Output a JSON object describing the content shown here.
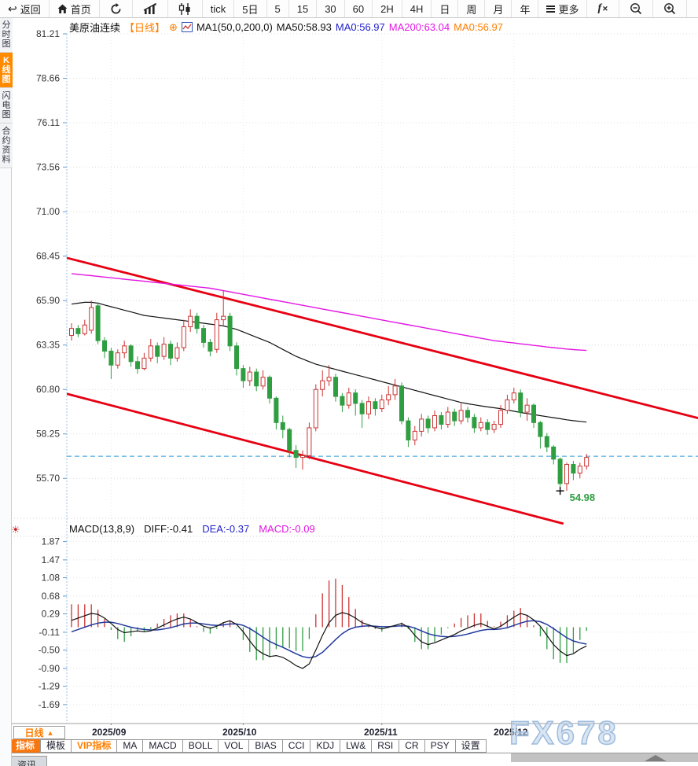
{
  "toolbar": {
    "back_label": "返回",
    "home_label": "首页",
    "buttons": [
      "tick",
      "5日",
      "5",
      "15",
      "30",
      "60",
      "2H",
      "4H",
      "日",
      "周",
      "月",
      "年"
    ],
    "more_label": "更多"
  },
  "sidebar": {
    "items": [
      {
        "label": "分时图",
        "active": false
      },
      {
        "label": "K线图",
        "active": true
      },
      {
        "label": "闪电图",
        "active": false
      },
      {
        "label": "合约资料",
        "active": false
      }
    ]
  },
  "title": {
    "symbol": "美原油连续",
    "period_tag": "【日线】",
    "ma_settings": "MA1(50,0,200,0)",
    "ma50_text": "MA50:58.93",
    "ma0_blue_text": "MA0:56.97",
    "ma200_text": "MA200:63.04",
    "ma0_orange_text": "MA0:56.97"
  },
  "macd_header": {
    "title": "MACD(13,8,9)",
    "diff_text": "DIFF:-0.41",
    "dea_text": "DEA:-0.37",
    "macd_text": "MACD:-0.09"
  },
  "footer": {
    "period_box_label": "日线",
    "x_labels": [
      "2025/09",
      "2025/10",
      "2025/11",
      "2025/12"
    ],
    "tabs": [
      {
        "label": "指标",
        "style": "active"
      },
      {
        "label": "模板",
        "style": ""
      },
      {
        "label": "VIP指标",
        "style": "vip"
      },
      {
        "label": "MA",
        "style": ""
      },
      {
        "label": "MACD",
        "style": ""
      },
      {
        "label": "BOLL",
        "style": ""
      },
      {
        "label": "VOL",
        "style": ""
      },
      {
        "label": "BIAS",
        "style": ""
      },
      {
        "label": "CCI",
        "style": ""
      },
      {
        "label": "KDJ",
        "style": ""
      },
      {
        "label": "LW&",
        "style": ""
      },
      {
        "label": "RSI",
        "style": ""
      },
      {
        "label": "CR",
        "style": ""
      },
      {
        "label": "PSY",
        "style": ""
      },
      {
        "label": "设置",
        "style": ""
      }
    ],
    "partial_tab_label": "资讯"
  },
  "watermark": "FX678",
  "colors": {
    "accent_orange": "#ff7e00",
    "up_red": "#cc3333",
    "down_green": "#2f9e41",
    "ma50_black": "#111111",
    "ma200_magenta": "#e316e3",
    "dea_blue": "#223a9e",
    "channel_red": "#e60012",
    "price_line_blue": "#2e9bd6",
    "grid_gray": "#dcdcdc"
  },
  "chart_data": {
    "type": "candlestick-with-macd",
    "title": "美原油连续 日线 (WTI Crude Oil Continuous, Daily)",
    "y_axis_main": [
      81.21,
      78.66,
      76.11,
      73.56,
      71.0,
      68.45,
      65.9,
      63.35,
      60.8,
      58.25,
      55.7
    ],
    "y_axis_macd": [
      1.87,
      1.47,
      1.08,
      0.68,
      0.29,
      -0.11,
      -0.5,
      -0.9,
      -1.29,
      -1.69
    ],
    "x_months": [
      {
        "label": "2025/09",
        "i": 6
      },
      {
        "label": "2025/10",
        "i": 26
      },
      {
        "label": "2025/11",
        "i": 47
      },
      {
        "label": "2025/12",
        "i": 67
      }
    ],
    "current_price_line": 56.97,
    "low_marker": {
      "index": 74,
      "value": 54.98,
      "label": "54.98"
    },
    "channel_lines": [
      {
        "i1": -0.7,
        "v1": 68.35,
        "i2": 95.0,
        "v2": 59.15
      },
      {
        "i1": -0.7,
        "v1": 60.55,
        "i2": 74.5,
        "v2": 53.1
      }
    ],
    "candles": [
      [
        63.9,
        64.6,
        63.6,
        64.3
      ],
      [
        64.3,
        64.5,
        63.8,
        64.0
      ],
      [
        64.0,
        64.8,
        63.9,
        64.5
      ],
      [
        64.2,
        65.9,
        64.0,
        65.5
      ],
      [
        65.6,
        65.8,
        63.4,
        63.6
      ],
      [
        63.6,
        63.8,
        62.6,
        63.0
      ],
      [
        63.0,
        63.2,
        61.4,
        62.2
      ],
      [
        62.2,
        63.1,
        62.0,
        62.9
      ],
      [
        62.9,
        63.6,
        62.6,
        63.3
      ],
      [
        63.3,
        63.4,
        62.1,
        62.4
      ],
      [
        62.4,
        62.7,
        61.7,
        62.0
      ],
      [
        62.0,
        62.9,
        61.9,
        62.6
      ],
      [
        62.6,
        63.7,
        62.4,
        63.3
      ],
      [
        63.3,
        63.5,
        62.3,
        62.7
      ],
      [
        62.7,
        63.8,
        62.5,
        63.4
      ],
      [
        63.4,
        63.6,
        62.2,
        62.6
      ],
      [
        62.6,
        63.5,
        62.4,
        63.2
      ],
      [
        63.2,
        64.8,
        63.0,
        64.4
      ],
      [
        64.4,
        65.4,
        64.1,
        65.0
      ],
      [
        65.0,
        65.2,
        64.0,
        64.3
      ],
      [
        64.3,
        64.5,
        63.2,
        63.5
      ],
      [
        63.5,
        63.7,
        62.7,
        63.0
      ],
      [
        63.1,
        65.2,
        62.9,
        64.8
      ],
      [
        64.8,
        66.5,
        64.5,
        65.0
      ],
      [
        65.0,
        65.2,
        63.0,
        63.3
      ],
      [
        63.3,
        63.5,
        61.6,
        62.0
      ],
      [
        62.0,
        62.2,
        60.9,
        61.3
      ],
      [
        61.3,
        62.1,
        61.0,
        61.8
      ],
      [
        61.8,
        62.0,
        60.7,
        61.0
      ],
      [
        61.0,
        61.9,
        60.8,
        61.5
      ],
      [
        61.5,
        61.6,
        60.0,
        60.3
      ],
      [
        60.3,
        60.4,
        58.5,
        58.9
      ],
      [
        58.9,
        59.3,
        58.0,
        58.5
      ],
      [
        58.5,
        58.6,
        56.9,
        57.3
      ],
      [
        57.3,
        57.6,
        56.3,
        56.9
      ],
      [
        56.9,
        57.3,
        56.2,
        57.0
      ],
      [
        57.0,
        58.9,
        56.8,
        58.6
      ],
      [
        58.6,
        61.1,
        58.4,
        60.8
      ],
      [
        60.8,
        61.9,
        60.4,
        61.3
      ],
      [
        61.3,
        62.2,
        61.0,
        61.5
      ],
      [
        61.5,
        61.7,
        60.1,
        60.4
      ],
      [
        60.4,
        60.6,
        59.5,
        59.9
      ],
      [
        59.9,
        60.9,
        59.7,
        60.6
      ],
      [
        60.6,
        60.8,
        59.3,
        60.0
      ],
      [
        60.0,
        60.2,
        58.6,
        59.4
      ],
      [
        59.4,
        60.4,
        59.1,
        60.1
      ],
      [
        60.1,
        60.3,
        59.3,
        59.7
      ],
      [
        59.7,
        60.5,
        59.5,
        60.2
      ],
      [
        60.2,
        61.0,
        59.9,
        60.5
      ],
      [
        60.5,
        61.4,
        60.2,
        61.0
      ],
      [
        61.0,
        61.2,
        58.8,
        59.0
      ],
      [
        59.0,
        59.2,
        57.5,
        57.9
      ],
      [
        57.9,
        58.7,
        57.6,
        58.4
      ],
      [
        58.4,
        59.4,
        58.1,
        59.1
      ],
      [
        59.1,
        59.3,
        58.3,
        58.6
      ],
      [
        58.6,
        59.6,
        58.4,
        59.3
      ],
      [
        59.3,
        59.5,
        58.5,
        58.8
      ],
      [
        58.8,
        59.8,
        58.6,
        59.5
      ],
      [
        59.5,
        59.7,
        58.7,
        59.0
      ],
      [
        59.0,
        60.0,
        58.8,
        59.6
      ],
      [
        59.6,
        59.8,
        58.9,
        59.2
      ],
      [
        59.2,
        59.4,
        58.3,
        58.6
      ],
      [
        58.6,
        59.2,
        58.4,
        58.9
      ],
      [
        58.9,
        59.1,
        58.2,
        58.5
      ],
      [
        58.5,
        59.0,
        58.3,
        58.8
      ],
      [
        58.8,
        59.9,
        58.6,
        59.6
      ],
      [
        59.6,
        60.5,
        59.4,
        60.2
      ],
      [
        60.2,
        60.9,
        60.0,
        60.6
      ],
      [
        60.6,
        60.8,
        59.2,
        59.5
      ],
      [
        59.5,
        60.3,
        59.0,
        59.9
      ],
      [
        59.9,
        60.0,
        58.6,
        58.9
      ],
      [
        58.9,
        59.0,
        57.4,
        58.1
      ],
      [
        58.1,
        58.3,
        57.2,
        57.5
      ],
      [
        57.5,
        57.6,
        56.5,
        56.8
      ],
      [
        56.8,
        56.9,
        55.2,
        55.4
      ],
      [
        55.4,
        56.6,
        54.98,
        56.5
      ],
      [
        56.5,
        56.7,
        55.6,
        56.0
      ],
      [
        56.0,
        56.6,
        55.7,
        56.4
      ],
      [
        56.4,
        57.1,
        56.2,
        56.9
      ]
    ],
    "ma50": [
      65.7,
      65.75,
      65.8,
      65.8,
      65.75,
      65.65,
      65.55,
      65.45,
      65.35,
      65.25,
      65.15,
      65.05,
      65.0,
      64.95,
      64.9,
      64.85,
      64.8,
      64.75,
      64.7,
      64.65,
      64.6,
      64.55,
      64.5,
      64.45,
      64.35,
      64.25,
      64.1,
      63.95,
      63.8,
      63.65,
      63.5,
      63.3,
      63.1,
      62.9,
      62.7,
      62.55,
      62.4,
      62.25,
      62.15,
      62.05,
      61.95,
      61.85,
      61.75,
      61.65,
      61.55,
      61.45,
      61.35,
      61.25,
      61.15,
      61.05,
      60.95,
      60.85,
      60.75,
      60.65,
      60.55,
      60.45,
      60.35,
      60.25,
      60.15,
      60.05,
      59.98,
      59.92,
      59.86,
      59.8,
      59.75,
      59.7,
      59.62,
      59.55,
      59.48,
      59.42,
      59.36,
      59.3,
      59.24,
      59.18,
      59.12,
      59.06,
      59.01,
      58.97,
      58.93
    ],
    "ma200": [
      67.45,
      67.41,
      67.37,
      67.33,
      67.29,
      67.25,
      67.21,
      67.17,
      67.13,
      67.09,
      67.05,
      67.01,
      66.97,
      66.93,
      66.89,
      66.85,
      66.81,
      66.77,
      66.73,
      66.69,
      66.65,
      66.61,
      66.54,
      66.47,
      66.4,
      66.33,
      66.26,
      66.19,
      66.12,
      66.05,
      65.98,
      65.91,
      65.84,
      65.77,
      65.7,
      65.63,
      65.56,
      65.49,
      65.42,
      65.35,
      65.28,
      65.21,
      65.14,
      65.07,
      65.0,
      64.93,
      64.86,
      64.79,
      64.72,
      64.65,
      64.58,
      64.51,
      64.44,
      64.37,
      64.3,
      64.23,
      64.16,
      64.09,
      64.02,
      63.95,
      63.88,
      63.81,
      63.74,
      63.67,
      63.6,
      63.56,
      63.51,
      63.47,
      63.42,
      63.38,
      63.33,
      63.29,
      63.24,
      63.2,
      63.16,
      63.12,
      63.09,
      63.06,
      63.04
    ],
    "macd_diff": [
      0.15,
      0.2,
      0.25,
      0.3,
      0.28,
      0.2,
      0.08,
      -0.05,
      -0.12,
      -0.1,
      -0.08,
      -0.1,
      -0.08,
      -0.02,
      0.05,
      0.12,
      0.18,
      0.22,
      0.18,
      0.1,
      0.02,
      -0.02,
      0.02,
      0.1,
      0.14,
      0.06,
      -0.1,
      -0.3,
      -0.48,
      -0.58,
      -0.64,
      -0.62,
      -0.66,
      -0.74,
      -0.84,
      -0.9,
      -0.8,
      -0.5,
      -0.18,
      0.1,
      0.26,
      0.32,
      0.28,
      0.2,
      0.1,
      0.05,
      0.0,
      -0.04,
      0.0,
      0.04,
      0.08,
      0.0,
      -0.18,
      -0.32,
      -0.38,
      -0.34,
      -0.28,
      -0.22,
      -0.16,
      -0.08,
      -0.02,
      0.04,
      0.08,
      0.02,
      -0.04,
      0.02,
      0.12,
      0.22,
      0.3,
      0.26,
      0.16,
      0.02,
      -0.18,
      -0.38,
      -0.52,
      -0.62,
      -0.58,
      -0.48,
      -0.41
    ],
    "macd_dea": [
      -0.1,
      -0.05,
      0.0,
      0.05,
      0.09,
      0.11,
      0.11,
      0.08,
      0.04,
      0.0,
      -0.03,
      -0.05,
      -0.06,
      -0.06,
      -0.04,
      -0.01,
      0.03,
      0.07,
      0.09,
      0.09,
      0.07,
      0.05,
      0.04,
      0.05,
      0.07,
      0.07,
      0.04,
      -0.03,
      -0.12,
      -0.22,
      -0.31,
      -0.38,
      -0.44,
      -0.51,
      -0.58,
      -0.64,
      -0.67,
      -0.64,
      -0.55,
      -0.41,
      -0.27,
      -0.14,
      -0.05,
      0.0,
      0.02,
      0.03,
      0.02,
      0.01,
      0.01,
      0.02,
      0.03,
      0.02,
      -0.02,
      -0.08,
      -0.14,
      -0.18,
      -0.2,
      -0.21,
      -0.2,
      -0.18,
      -0.15,
      -0.11,
      -0.07,
      -0.05,
      -0.05,
      -0.04,
      -0.01,
      0.04,
      0.09,
      0.13,
      0.14,
      0.12,
      0.06,
      -0.03,
      -0.13,
      -0.23,
      -0.3,
      -0.34,
      -0.37
    ],
    "indicator_current": {
      "ma50": 58.93,
      "ma200": 63.04,
      "price": 56.97,
      "diff": -0.41,
      "dea": -0.37,
      "macd": -0.09
    }
  }
}
